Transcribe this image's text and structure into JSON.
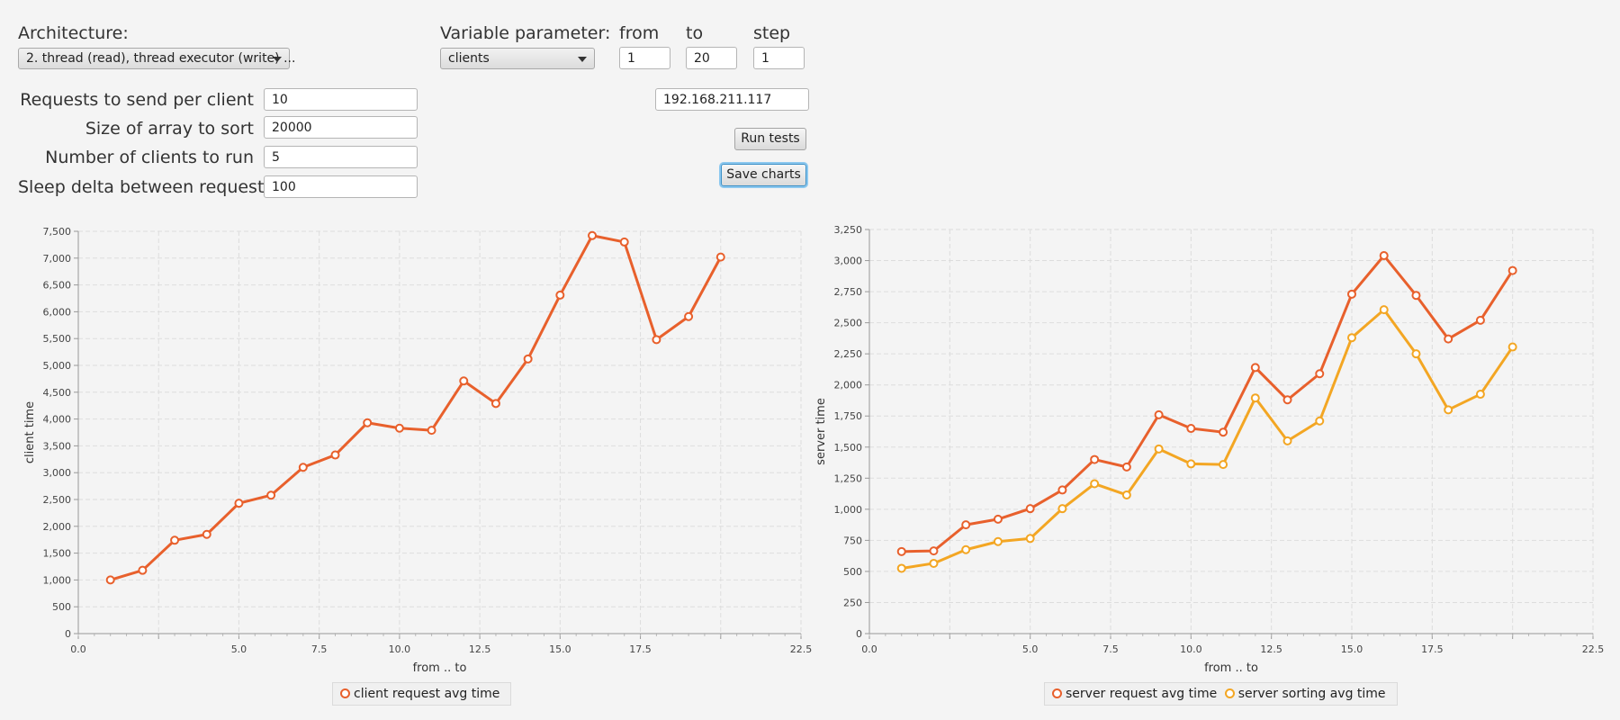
{
  "controls": {
    "architecture_label": "Architecture:",
    "architecture_value": "2. thread (read), thread executor (write) ...",
    "variable_label": "Variable parameter:",
    "variable_value": "clients",
    "from_label": "from",
    "from_value": "1",
    "to_label": "to",
    "to_value": "20",
    "step_label": "step",
    "step_value": "1",
    "requests_label": "Requests to send per client",
    "requests_value": "10",
    "array_label": "Size of array to sort",
    "array_value": "20000",
    "clients_label": "Number of clients to run",
    "clients_value": "5",
    "sleep_label": "Sleep delta between requests",
    "sleep_value": "100",
    "ip_value": "192.168.211.117",
    "run_button": "Run tests",
    "save_button": "Save charts"
  },
  "colors": {
    "series1": "#e8602c",
    "series2": "#f3a623",
    "grid": "#dddddd"
  },
  "chart_data": [
    {
      "type": "line",
      "title": "",
      "xlabel": "from .. to",
      "ylabel": "client time",
      "xlim": [
        0,
        22.5
      ],
      "ylim": [
        0,
        7500
      ],
      "xticks": [
        0,
        5,
        7.5,
        10,
        12.5,
        15,
        17.5,
        22.5
      ],
      "xtick_labels": [
        "0.0",
        "5.0",
        "7.5",
        "10.0",
        "12.5",
        "15.0",
        "17.5",
        "22.5"
      ],
      "xminor": [
        2.5,
        20
      ],
      "yticks": [
        0,
        500,
        1000,
        1500,
        2000,
        2500,
        3000,
        3500,
        4000,
        4500,
        5000,
        5500,
        6000,
        6500,
        7000,
        7500
      ],
      "ytick_labels": [
        "0",
        "500",
        "1,000",
        "1,500",
        "2,000",
        "2,500",
        "3,000",
        "3,500",
        "4,000",
        "4,500",
        "5,000",
        "5,500",
        "6,000",
        "6,500",
        "7,000",
        "7,500"
      ],
      "grid": true,
      "legend": "bottom-center",
      "series": [
        {
          "name": "client request avg time",
          "color": "#e8602c",
          "x": [
            1,
            2,
            3,
            4,
            5,
            6,
            7,
            8,
            9,
            10,
            11,
            12,
            13,
            14,
            15,
            16,
            17,
            18,
            19,
            20
          ],
          "y": [
            1000,
            1180,
            1740,
            1850,
            2430,
            2580,
            3100,
            3330,
            3930,
            3830,
            3790,
            4710,
            4290,
            5120,
            6310,
            7420,
            7300,
            5480,
            5910,
            7020
          ]
        }
      ]
    },
    {
      "type": "line",
      "title": "",
      "xlabel": "from .. to",
      "ylabel": "server time",
      "xlim": [
        0,
        22.5
      ],
      "ylim": [
        0,
        3250
      ],
      "xticks": [
        0,
        5,
        7.5,
        10,
        12.5,
        15,
        17.5,
        22.5
      ],
      "xtick_labels": [
        "0.0",
        "5.0",
        "7.5",
        "10.0",
        "12.5",
        "15.0",
        "17.5",
        "22.5"
      ],
      "xminor": [
        2.5,
        20
      ],
      "yticks": [
        0,
        250,
        500,
        750,
        1000,
        1250,
        1500,
        1750,
        2000,
        2250,
        2500,
        2750,
        3000,
        3250
      ],
      "ytick_labels": [
        "0",
        "250",
        "500",
        "750",
        "1,000",
        "1,250",
        "1,500",
        "1,750",
        "2,000",
        "2,250",
        "2,500",
        "2,750",
        "3,000",
        "3,250"
      ],
      "grid": true,
      "legend": "bottom-center",
      "series": [
        {
          "name": "server request avg time",
          "color": "#e8602c",
          "x": [
            1,
            2,
            3,
            4,
            5,
            6,
            7,
            8,
            9,
            10,
            11,
            12,
            13,
            14,
            15,
            16,
            17,
            18,
            19,
            20
          ],
          "y": [
            660,
            665,
            875,
            920,
            1005,
            1155,
            1400,
            1340,
            1760,
            1650,
            1620,
            2140,
            1880,
            2090,
            2730,
            3040,
            2720,
            2370,
            2520,
            2920
          ]
        },
        {
          "name": "server sorting avg time",
          "color": "#f3a623",
          "x": [
            1,
            2,
            3,
            4,
            5,
            6,
            7,
            8,
            9,
            10,
            11,
            12,
            13,
            14,
            15,
            16,
            17,
            18,
            19,
            20
          ],
          "y": [
            525,
            565,
            675,
            740,
            765,
            1005,
            1205,
            1115,
            1485,
            1365,
            1360,
            1895,
            1550,
            1710,
            2380,
            2605,
            2250,
            1800,
            1925,
            2305
          ]
        }
      ]
    }
  ]
}
